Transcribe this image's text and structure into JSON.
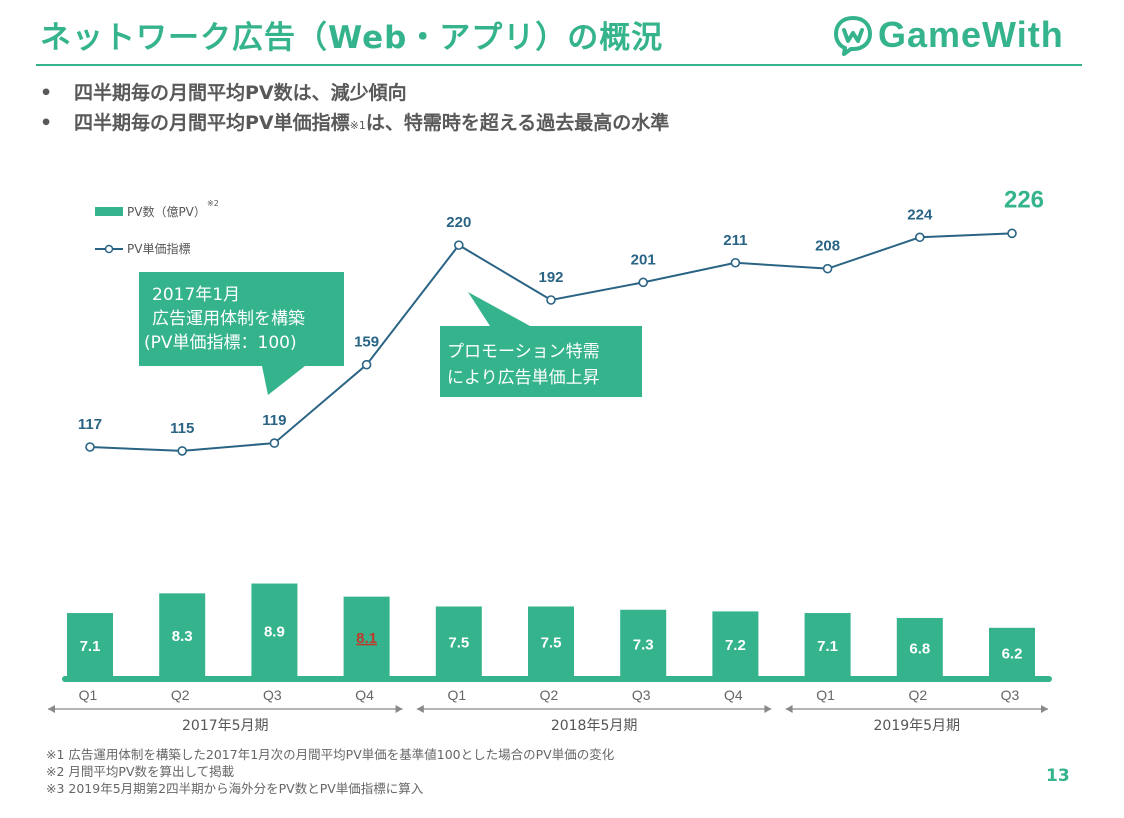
{
  "slide": {
    "title": "ネットワーク広告（Web・アプリ）の概況",
    "brand": "GameWith",
    "bullets": [
      {
        "text": "四半期毎の月間平均PV数は、減少傾向",
        "sup": ""
      },
      {
        "text": "四半期毎の月間平均PV単価指標",
        "sup": "※1",
        "tail": "は、特需時を超える過去最高の水準"
      }
    ],
    "footnotes": [
      "※1 広告運用体制を構築した2017年1月次の月間平均PV単価を基準値100とした場合のPV単価の変化",
      "※2 月間平均PV数を算出して掲載",
      "※3 2019年5月期第2四半期から海外分をPV数とPV単価指標に算入"
    ],
    "page_number": "13"
  },
  "chart_data": {
    "type": "bar",
    "categories": [
      "Q1",
      "Q2",
      "Q3",
      "Q4",
      "Q1",
      "Q2",
      "Q3",
      "Q4",
      "Q1",
      "Q2",
      "Q3"
    ],
    "periods": [
      {
        "label": "2017年5月期",
        "start": 0,
        "end": 3
      },
      {
        "label": "2018年5月期",
        "start": 4,
        "end": 7
      },
      {
        "label": "2019年5月期",
        "start": 8,
        "end": 10
      }
    ],
    "series": [
      {
        "name": "PV数（億PV）",
        "name_sup": "※2",
        "type": "bar",
        "color": "#34b38c",
        "values": [
          7.1,
          8.3,
          8.9,
          8.1,
          7.5,
          7.5,
          7.3,
          7.2,
          7.1,
          6.8,
          6.2
        ],
        "highlight_index": 3,
        "highlight_color": "#c0392b"
      },
      {
        "name": "PV単価指標",
        "type": "line",
        "color": "#2a6485",
        "values": [
          117,
          115,
          119,
          159,
          220,
          192,
          201,
          211,
          208,
          224,
          226
        ],
        "last_label_color": "#34b38c"
      }
    ],
    "annotations": [
      {
        "lines": [
          "2017年1月",
          "広告運用体制を構築",
          "(PV単価指標：100)"
        ],
        "color": "#34b38c"
      },
      {
        "lines": [
          "プロモーション特需",
          "により広告単価上昇"
        ],
        "color": "#34b38c"
      }
    ],
    "colors": {
      "accent": "#34b38c",
      "line": "#2a6485",
      "axis_text": "#666666"
    }
  }
}
